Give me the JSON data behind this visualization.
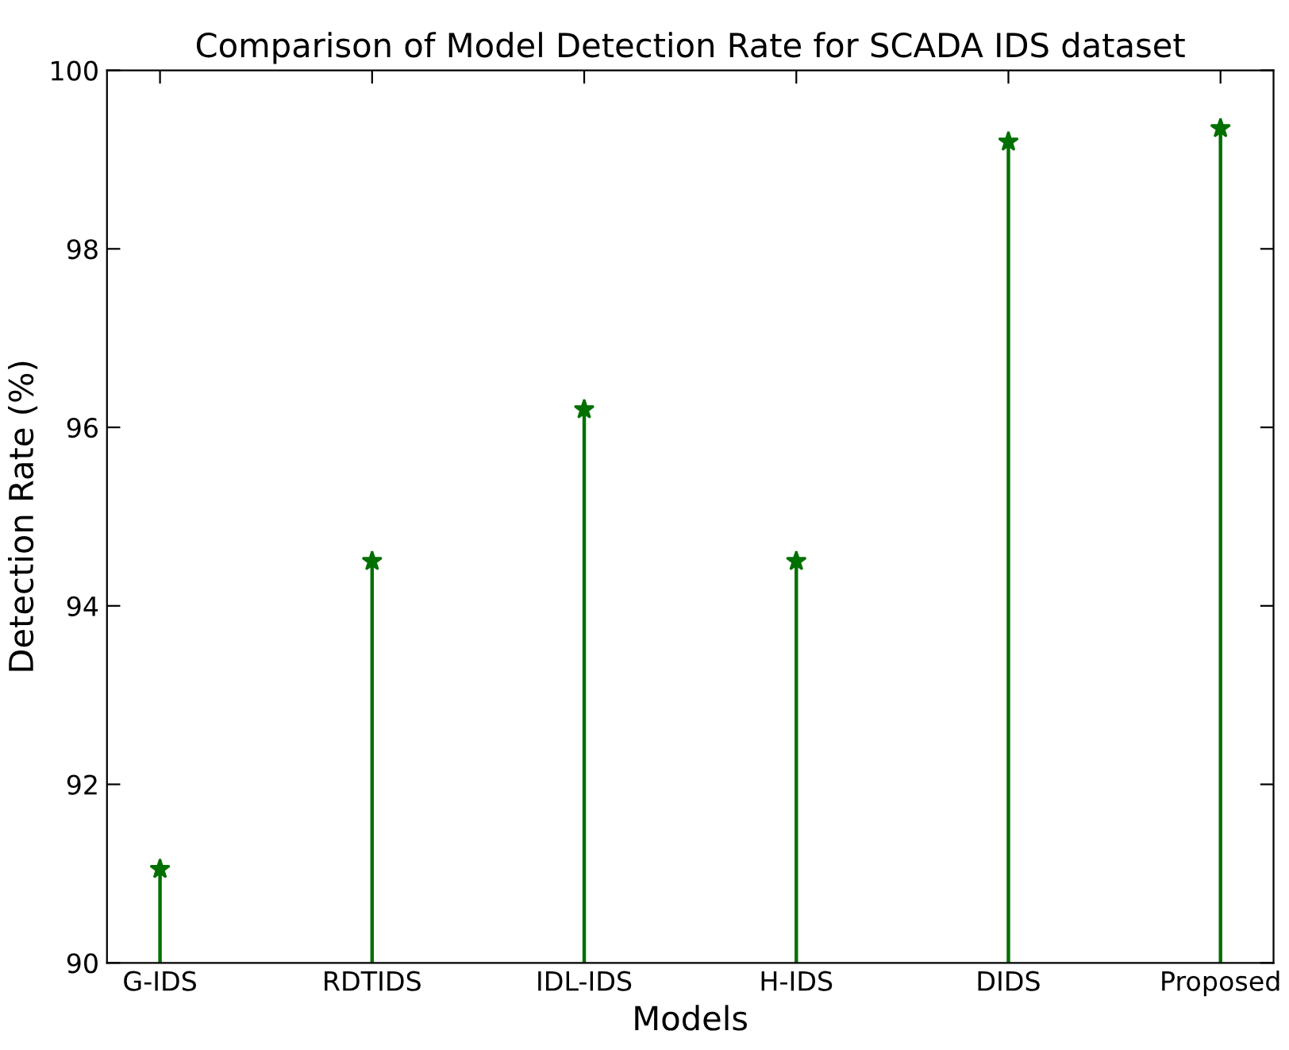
{
  "chart_data": {
    "type": "lollipop",
    "title": "Comparison of Model Detection Rate for SCADA IDS dataset",
    "xlabel": "Models",
    "ylabel": "Detection Rate (%)",
    "categories": [
      "G-IDS",
      "RDTIDS",
      "IDL-IDS",
      "H-IDS",
      "DIDS",
      "Proposed"
    ],
    "series": [
      {
        "color": "#007000",
        "values": [
          91.05,
          94.5,
          96.2,
          94.5,
          99.2,
          99.35
        ]
      }
    ],
    "marker": "star",
    "ylim": [
      90,
      100
    ],
    "yticks": [
      90,
      92,
      94,
      96,
      98,
      100
    ],
    "legend": false
  }
}
